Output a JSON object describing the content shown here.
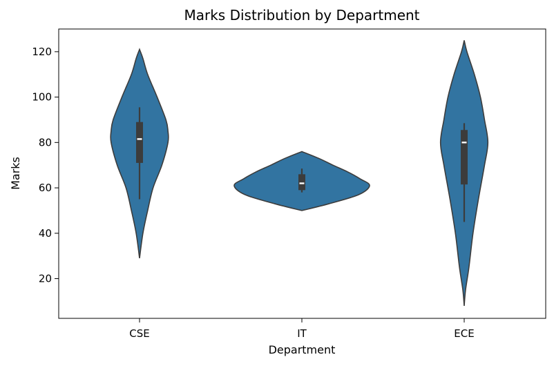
{
  "chart_data": {
    "type": "violin",
    "title": "Marks Distribution by Department",
    "xlabel": "Department",
    "ylabel": "Marks",
    "ylim": [
      2.5,
      130
    ],
    "yticks": [
      20,
      40,
      60,
      80,
      100,
      120
    ],
    "categories": [
      "CSE",
      "IT",
      "ECE"
    ],
    "violin_color": "#3274a1",
    "outline_color": "#3c3c3c",
    "box_color": "#3c3c3c",
    "median_color": "#ffffff",
    "violins": [
      {
        "category": "CSE",
        "min": 29,
        "max": 121,
        "median": 81.5,
        "q1": 71,
        "q3": 89,
        "whisker_low": 55,
        "whisker_high": 95.5,
        "profile": [
          [
            29,
            0
          ],
          [
            40,
            0.05
          ],
          [
            50,
            0.12
          ],
          [
            60,
            0.2
          ],
          [
            70,
            0.33
          ],
          [
            80,
            0.42
          ],
          [
            85,
            0.42
          ],
          [
            90,
            0.39
          ],
          [
            100,
            0.26
          ],
          [
            110,
            0.12
          ],
          [
            117,
            0.05
          ],
          [
            121,
            0
          ]
        ]
      },
      {
        "category": "IT",
        "min": 50,
        "max": 76,
        "median": 62,
        "q1": 59,
        "q3": 66,
        "whisker_low": 58,
        "whisker_high": 68.5,
        "profile": [
          [
            50,
            0
          ],
          [
            53,
            0.4
          ],
          [
            57,
            0.84
          ],
          [
            61,
            1
          ],
          [
            64,
            0.86
          ],
          [
            67,
            0.68
          ],
          [
            70,
            0.46
          ],
          [
            73,
            0.25
          ],
          [
            76,
            0
          ]
        ]
      },
      {
        "category": "ECE",
        "min": 8,
        "max": 125,
        "median": 80,
        "q1": 61.5,
        "q3": 85.5,
        "whisker_low": 45,
        "whisker_high": 88.5,
        "profile": [
          [
            8,
            0
          ],
          [
            15,
            0.02
          ],
          [
            25,
            0.07
          ],
          [
            40,
            0.13
          ],
          [
            55,
            0.21
          ],
          [
            70,
            0.3
          ],
          [
            80,
            0.35
          ],
          [
            90,
            0.3
          ],
          [
            100,
            0.24
          ],
          [
            110,
            0.15
          ],
          [
            120,
            0.04
          ],
          [
            125,
            0
          ]
        ]
      }
    ]
  }
}
